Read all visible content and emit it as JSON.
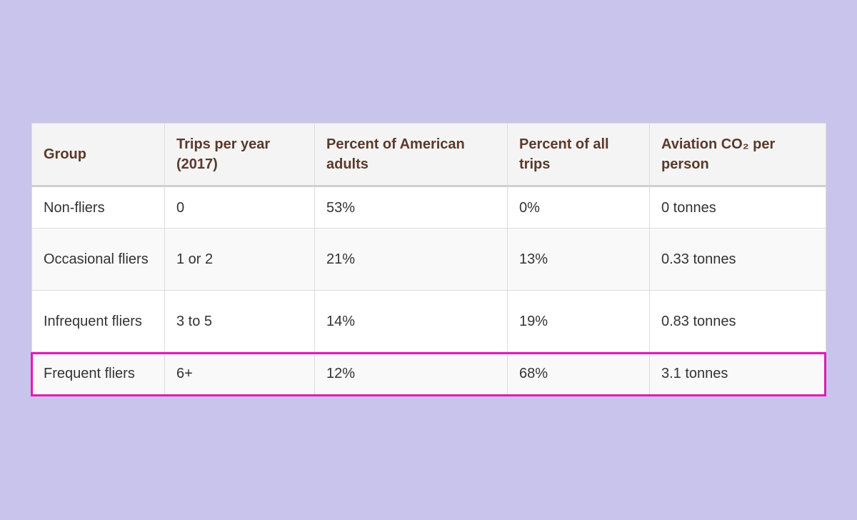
{
  "table": {
    "header": [
      "Group",
      "Trips per year (2017)",
      "Percent of American adults",
      "Percent of all trips",
      "Aviation CO₂ per person"
    ],
    "rows": [
      [
        "Non-fliers",
        "0",
        "53%",
        "0%",
        "0 tonnes"
      ],
      [
        "Occasional fliers",
        "1 or 2",
        "21%",
        "13%",
        "0.33 tonnes"
      ],
      [
        "Infrequent fliers",
        "3 to 5",
        "14%",
        "19%",
        "0.83 tonnes"
      ],
      [
        "Frequent fliers",
        "6+",
        "12%",
        "68%",
        "3.1 tonnes"
      ]
    ]
  }
}
